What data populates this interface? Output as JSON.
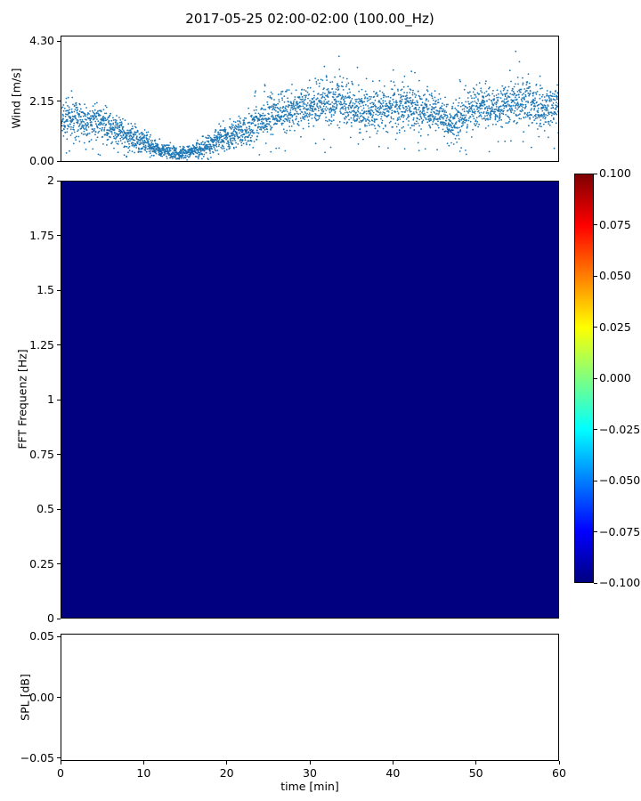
{
  "title": "2017-05-25 02:00-02:00 (100.00_Hz)",
  "axes": {
    "wind": {
      "ylabel": "Wind [m/s]"
    },
    "fft": {
      "ylabel": "FFT Frequenz [Hz]"
    },
    "spl": {
      "ylabel": "SPL [dB]"
    },
    "x": {
      "label": "time [min]"
    }
  },
  "colors": {
    "scatter_marker": "#1f77b4",
    "heatmap_fill": "#000080",
    "axis": "#000000",
    "background": "#ffffff"
  },
  "chart_data": [
    {
      "type": "scatter",
      "title": "2017-05-25 02:00-02:00 (100.00_Hz)",
      "ylabel": "Wind [m/s]",
      "xlim": [
        0,
        60
      ],
      "ylim": [
        0,
        4.3
      ],
      "yticks": [
        {
          "v": 0.0,
          "label": "0.00"
        },
        {
          "v": 2.15,
          "label": "2.15"
        },
        {
          "v": 4.3,
          "label": "4.30"
        }
      ],
      "marker": ".",
      "marker_color": "#1f77b4",
      "points_per_minute": 60,
      "seed": 20170525,
      "mean_per_minute": [
        1.5,
        1.6,
        1.45,
        1.3,
        1.45,
        1.4,
        1.25,
        1.05,
        0.9,
        0.8,
        0.7,
        0.5,
        0.4,
        0.35,
        0.3,
        0.35,
        0.4,
        0.5,
        0.65,
        0.8,
        0.9,
        1.0,
        1.1,
        1.3,
        1.45,
        1.6,
        1.7,
        1.8,
        1.85,
        1.95,
        2.0,
        2.05,
        2.15,
        2.25,
        2.1,
        1.9,
        1.8,
        1.7,
        1.8,
        1.9,
        1.95,
        1.9,
        2.0,
        1.9,
        1.8,
        1.7,
        1.6,
        1.3,
        1.5,
        1.8,
        1.9,
        2.0,
        1.9,
        2.0,
        2.1,
        2.2,
        2.1,
        2.0,
        1.9,
        1.9,
        1.8
      ],
      "sd_per_minute": [
        0.3,
        0.32,
        0.3,
        0.28,
        0.3,
        0.3,
        0.28,
        0.25,
        0.22,
        0.22,
        0.2,
        0.15,
        0.12,
        0.1,
        0.1,
        0.1,
        0.12,
        0.15,
        0.18,
        0.2,
        0.22,
        0.25,
        0.25,
        0.28,
        0.3,
        0.3,
        0.3,
        0.32,
        0.32,
        0.33,
        0.33,
        0.35,
        0.38,
        0.4,
        0.38,
        0.35,
        0.33,
        0.3,
        0.32,
        0.33,
        0.35,
        0.33,
        0.35,
        0.33,
        0.32,
        0.3,
        0.3,
        0.35,
        0.32,
        0.33,
        0.33,
        0.33,
        0.32,
        0.33,
        0.35,
        0.4,
        0.36,
        0.34,
        0.32,
        0.32,
        0.3
      ],
      "max_per_minute": [
        2.6,
        2.7,
        2.3,
        2.1,
        2.3,
        2.4,
        2.0,
        1.8,
        1.6,
        1.5,
        1.3,
        1.0,
        0.8,
        0.7,
        0.6,
        0.7,
        0.8,
        1.0,
        1.2,
        1.4,
        1.6,
        1.8,
        2.0,
        2.4,
        3.0,
        2.9,
        2.6,
        2.7,
        2.8,
        2.9,
        3.0,
        3.3,
        3.9,
        4.1,
        3.6,
        3.7,
        3.5,
        2.8,
        3.0,
        3.3,
        3.5,
        3.0,
        3.6,
        3.0,
        2.8,
        2.6,
        2.5,
        2.4,
        3.0,
        2.9,
        2.9,
        3.0,
        2.8,
        3.0,
        3.5,
        4.25,
        3.3,
        3.4,
        3.0,
        2.9,
        2.8
      ]
    },
    {
      "type": "heatmap",
      "ylabel": "FFT Frequenz [Hz]",
      "ylim": [
        0,
        2
      ],
      "xlim": [
        0,
        60
      ],
      "yticks": [
        {
          "v": 0,
          "label": "0"
        },
        {
          "v": 0.25,
          "label": "0.25"
        },
        {
          "v": 0.5,
          "label": "0.5"
        },
        {
          "v": 0.75,
          "label": "0.75"
        },
        {
          "v": 1,
          "label": "1"
        },
        {
          "v": 1.25,
          "label": "1.25"
        },
        {
          "v": 1.5,
          "label": "1.5"
        },
        {
          "v": 1.75,
          "label": "1.75"
        },
        {
          "v": 2,
          "label": "2"
        }
      ],
      "uniform_fill": "#000080",
      "colorbar": {
        "cmap": "jet",
        "vmin": -0.1,
        "vmax": 0.1,
        "ticks": [
          {
            "v": 0.1,
            "label": "0.100"
          },
          {
            "v": 0.075,
            "label": "0.075"
          },
          {
            "v": 0.05,
            "label": "0.050"
          },
          {
            "v": 0.025,
            "label": "0.025"
          },
          {
            "v": 0.0,
            "label": "0.000"
          },
          {
            "v": -0.025,
            "label": "−0.025"
          },
          {
            "v": -0.05,
            "label": "−0.050"
          },
          {
            "v": -0.075,
            "label": "−0.075"
          },
          {
            "v": -0.1,
            "label": "−0.100"
          }
        ],
        "gradient_stops": [
          {
            "pos": 0.0,
            "color": "#00007f"
          },
          {
            "pos": 0.125,
            "color": "#0000ff"
          },
          {
            "pos": 0.375,
            "color": "#00ffff"
          },
          {
            "pos": 0.625,
            "color": "#ffff00"
          },
          {
            "pos": 0.875,
            "color": "#ff0000"
          },
          {
            "pos": 1.0,
            "color": "#7f0000"
          }
        ]
      }
    },
    {
      "type": "line",
      "ylabel": "SPL [dB]",
      "xlabel": "time [min]",
      "ylim": [
        -0.05,
        0.05
      ],
      "xlim": [
        0,
        60
      ],
      "yticks": [
        {
          "v": -0.05,
          "label": "−0.05"
        },
        {
          "v": 0.0,
          "label": "0.00"
        },
        {
          "v": 0.05,
          "label": "0.05"
        }
      ],
      "xticks": [
        {
          "v": 0,
          "label": "0"
        },
        {
          "v": 10,
          "label": "10"
        },
        {
          "v": 20,
          "label": "20"
        },
        {
          "v": 30,
          "label": "30"
        },
        {
          "v": 40,
          "label": "40"
        },
        {
          "v": 50,
          "label": "50"
        },
        {
          "v": 60,
          "label": "60"
        }
      ],
      "series": []
    }
  ]
}
